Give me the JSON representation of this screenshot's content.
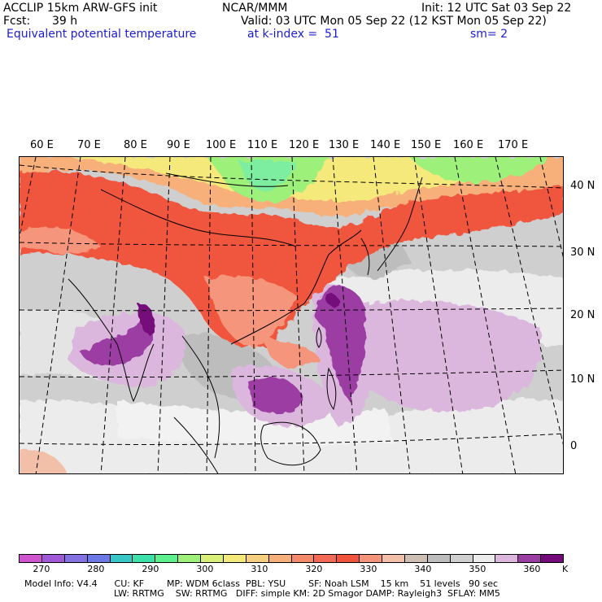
{
  "header": {
    "model": "ACCLIP 15km ARW-GFS init",
    "org": "NCAR/MMM",
    "init": "Init: 12 UTC Sat 03 Sep 22",
    "fcst_label": "Fcst:",
    "fcst_value": "39 h",
    "valid": "Valid: 03 UTC Mon 05 Sep 22 (12 KST Mon 05 Sep 22)",
    "field": "Equivalent potential temperature",
    "level": "at k-index =  51",
    "smooth": "sm= 2"
  },
  "map": {
    "lon_labels": [
      "60 E",
      "70 E",
      "80 E",
      "90 E",
      "100 E",
      "110 E",
      "120 E",
      "130 E",
      "140 E",
      "150 E",
      "160 E",
      "170 E"
    ],
    "lat_labels": [
      "40 N",
      "30 N",
      "20 N",
      "10 N",
      "0"
    ],
    "colors": {
      "ocean_gray": "#cfcfcf",
      "light": "#efefef",
      "mid_gray": "#bdbdbd",
      "lilac": "#dab3de",
      "violet": "#9c3ea6",
      "red": "#f0543c",
      "salmon": "#f4957b",
      "orange": "#f7b07a",
      "yellow": "#f4e97a",
      "green": "#9af07a",
      "mint": "#7deea0"
    }
  },
  "colorbar": {
    "unit": "K",
    "colors": [
      "#cf55cf",
      "#a05ad8",
      "#8472e0",
      "#6b78e6",
      "#38c6c6",
      "#3ce0a8",
      "#5ef08c",
      "#9df07a",
      "#d8f07a",
      "#f4e97a",
      "#f6cf80",
      "#f7b07a",
      "#f58a6a",
      "#f26a55",
      "#f0543c",
      "#f4957b",
      "#f2bfa8",
      "#cdbfb4",
      "#bdbdbd",
      "#cfcfcf",
      "#ececec",
      "#dcb7dd",
      "#9b3ea3",
      "#750a7a"
    ],
    "labels": [
      "270",
      "280",
      "290",
      "300",
      "310",
      "320",
      "330",
      "340",
      "350",
      "360"
    ]
  },
  "footer": {
    "line1": "Model Info: V4.4      CU: KF        MP: WDM 6class  PBL: YSU        SF: Noah LSM    15 km    51 levels   90 sec",
    "line2": "LW: RRTMG    SW: RRTMG   DIFF: simple KM: 2D Smagor DAMP: Rayleigh3  SFLAY: MM5"
  }
}
